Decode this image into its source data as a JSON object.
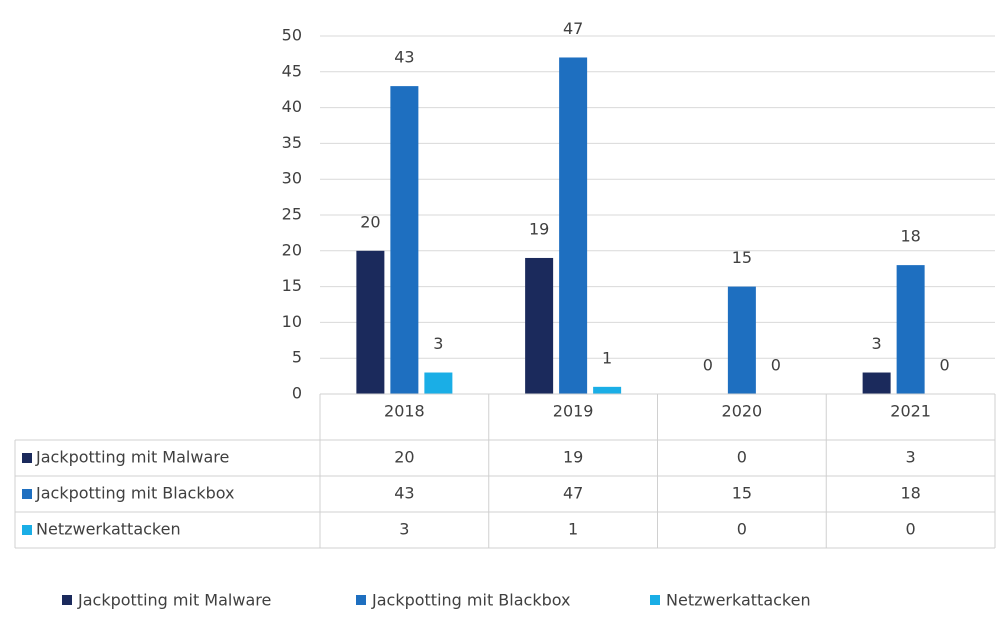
{
  "chart_data": {
    "type": "bar",
    "categories": [
      "2018",
      "2019",
      "2020",
      "2021"
    ],
    "series": [
      {
        "name": "Jackpotting mit Malware",
        "color": "#1b2a5c",
        "values": [
          20,
          19,
          0,
          3
        ]
      },
      {
        "name": "Jackpotting mit Blackbox",
        "color": "#1e6fc0",
        "values": [
          43,
          47,
          15,
          18
        ]
      },
      {
        "name": "Netzwerkattacken",
        "color": "#1aaee6",
        "values": [
          3,
          1,
          0,
          0
        ]
      }
    ],
    "ylim": [
      0,
      50
    ],
    "yticks": [
      0,
      5,
      10,
      15,
      20,
      25,
      30,
      35,
      40,
      45,
      50
    ],
    "grid": true,
    "legend": "bottom"
  }
}
